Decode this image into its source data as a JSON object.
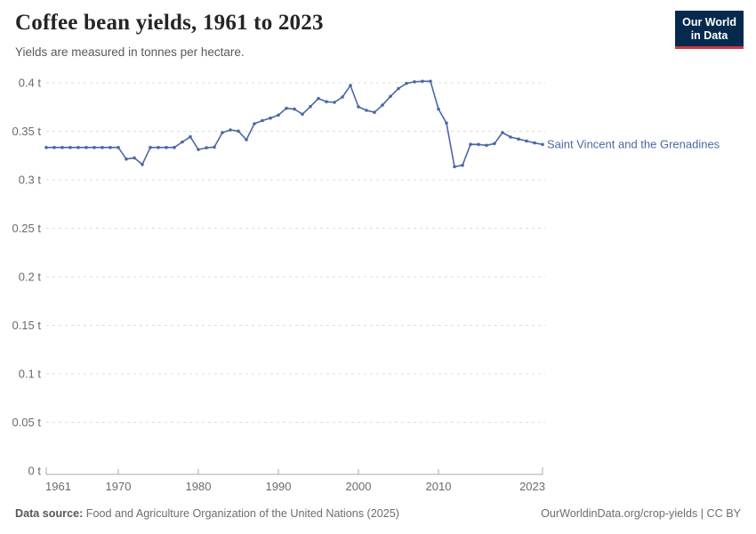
{
  "header": {
    "title": "Coffee bean yields, 1961 to 2023",
    "subtitle": "Yields are measured in tonnes per hectare.",
    "logo": {
      "line1": "Our World",
      "line2": "in Data"
    }
  },
  "colors": {
    "series": "#4a68a3",
    "logo_bg": "#062a4e",
    "logo_accent": "#d1353f",
    "grid": "#dcdcdc",
    "axis": "#a8a8a8",
    "tick_text": "#6b6b6b"
  },
  "chart_data": {
    "type": "line",
    "title": "Coffee bean yields, 1961 to 2023",
    "subtitle": "Yields are measured in tonnes per hectare.",
    "unit": "t",
    "ylabel": "tonnes per hectare",
    "ylim": [
      0,
      0.4
    ],
    "ytick_values": [
      0,
      0.05,
      0.1,
      0.15,
      0.2,
      0.25,
      0.3,
      0.35,
      0.4
    ],
    "yticks": [
      "0 t",
      "0.05 t",
      "0.1 t",
      "0.15 t",
      "0.2 t",
      "0.25 t",
      "0.3 t",
      "0.35 t",
      "0.4 t"
    ],
    "xticks": [
      1961,
      1970,
      1980,
      1990,
      2000,
      2010,
      2023
    ],
    "xtick_labels": [
      "1961",
      "1970",
      "1980",
      "1990",
      "2000",
      "2010",
      "2023"
    ],
    "grid": "horizontal-dashed",
    "legend": "inline-end-label",
    "series": [
      {
        "name": "Saint Vincent and the Grenadines",
        "x": [
          1961,
          1962,
          1963,
          1964,
          1965,
          1966,
          1967,
          1968,
          1969,
          1970,
          1971,
          1972,
          1973,
          1974,
          1975,
          1976,
          1977,
          1978,
          1979,
          1980,
          1981,
          1982,
          1983,
          1984,
          1985,
          1986,
          1987,
          1988,
          1989,
          1990,
          1991,
          1992,
          1993,
          1994,
          1995,
          1996,
          1997,
          1998,
          1999,
          2000,
          2001,
          2002,
          2003,
          2004,
          2005,
          2006,
          2007,
          2008,
          2009,
          2010,
          2011,
          2012,
          2013,
          2014,
          2015,
          2016,
          2017,
          2018,
          2019,
          2020,
          2021,
          2022,
          2023
        ],
        "values": [
          0.3333,
          0.3333,
          0.3333,
          0.3333,
          0.3333,
          0.3333,
          0.3333,
          0.3333,
          0.3333,
          0.3333,
          0.3214,
          0.3226,
          0.3158,
          0.3333,
          0.3333,
          0.3333,
          0.3333,
          0.339,
          0.3443,
          0.3312,
          0.3329,
          0.3337,
          0.3486,
          0.3514,
          0.3502,
          0.3413,
          0.3578,
          0.361,
          0.3636,
          0.3667,
          0.3737,
          0.3728,
          0.3676,
          0.3755,
          0.3838,
          0.3805,
          0.3798,
          0.3853,
          0.3972,
          0.3752,
          0.3716,
          0.3695,
          0.377,
          0.386,
          0.394,
          0.3994,
          0.401,
          0.4016,
          0.4016,
          0.3728,
          0.3584,
          0.3135,
          0.315,
          0.3365,
          0.3364,
          0.3355,
          0.3373,
          0.3486,
          0.344,
          0.342,
          0.34,
          0.338,
          0.3364
        ]
      }
    ]
  },
  "footer": {
    "source_label": "Data source:",
    "source_text": " Food and Agriculture Organization of the United Nations (2025)",
    "credit": "OurWorldinData.org/crop-yields | CC BY"
  }
}
